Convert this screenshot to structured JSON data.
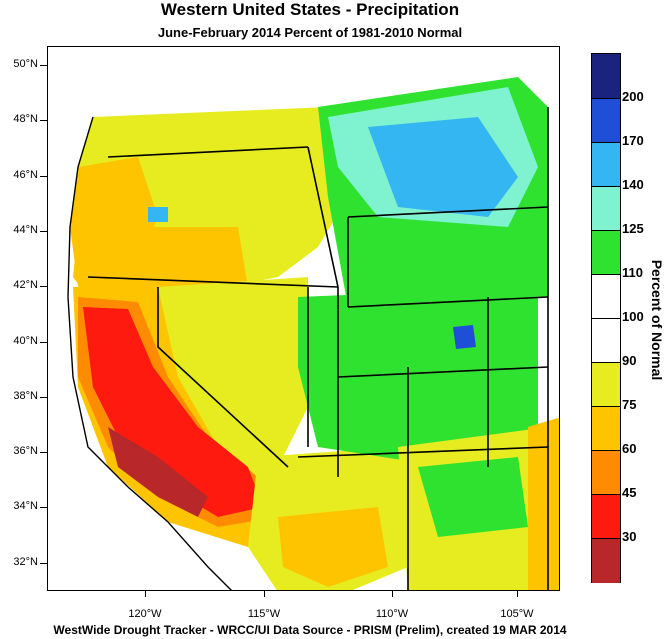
{
  "title": "Western United States - Precipitation",
  "subtitle": "June-February 2014  Percent of 1981-2010 Normal",
  "footer": "WestWide Drought Tracker - WRCC/UI  Data Source - PRISM (Prelim), created 19 MAR 2014",
  "lat_labels": [
    "50°N",
    "48°N",
    "46°N",
    "44°N",
    "42°N",
    "40°N",
    "38°N",
    "36°N",
    "34°N",
    "32°N"
  ],
  "lon_labels": [
    "120°W",
    "115°W",
    "110°W",
    "105°W"
  ],
  "legend": {
    "title": "Percent of Normal",
    "labels": [
      "200",
      "170",
      "140",
      "125",
      "110",
      "100",
      "90",
      "75",
      "60",
      "45",
      "30"
    ],
    "colors": [
      "#1a237e",
      "#1e4fd6",
      "#33b6f2",
      "#7ff2cf",
      "#2fe22f",
      "#ffffff",
      "#ffffff",
      "#e6ec1f",
      "#ffc400",
      "#ff8c00",
      "#ff1a10",
      "#b8282a"
    ]
  },
  "map_colors": {
    "ocean": "#ffffff",
    "very_dry": "#b8282a",
    "dry": "#ff1a10",
    "orange": "#ff8c00",
    "gold": "#ffc400",
    "yellow": "#e6ec1f",
    "near_normal": "#ffffff",
    "green": "#2fe22f",
    "aqua": "#7ff2cf",
    "sky": "#33b6f2",
    "blue": "#1e4fd6",
    "navy": "#1a237e"
  }
}
